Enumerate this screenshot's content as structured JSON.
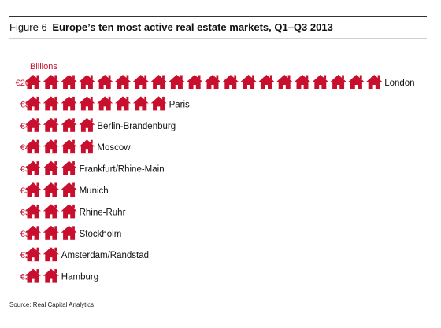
{
  "figure_label": "Figure 6",
  "title": "Europe’s ten most active real estate markets, Q1–Q3 2013",
  "source": "Source: Real Capital Analytics",
  "colors": {
    "accent": "#c8102e",
    "icon": "#c8102e",
    "text": "#111111"
  },
  "chart_data": {
    "type": "bar",
    "style": "pictogram",
    "icon": "house-icon",
    "unit_label": "Billions",
    "currency": "€",
    "categories": [
      "London",
      "Paris",
      "Berlin-Brandenburg",
      "Moscow",
      "Frankfurt/Rhine-Main",
      "Munich",
      "Rhine-Ruhr",
      "Stockholm",
      "Amsterdam/Randstad",
      "Hamburg"
    ],
    "value_labels": [
      "€20",
      "€8",
      "€4",
      "€4",
      "€3",
      "€3",
      "€3",
      "€3",
      "€2",
      "€2"
    ],
    "values": [
      20,
      8,
      4,
      4,
      3,
      3,
      3,
      3,
      2,
      2
    ],
    "grid": false,
    "legend": "none"
  }
}
